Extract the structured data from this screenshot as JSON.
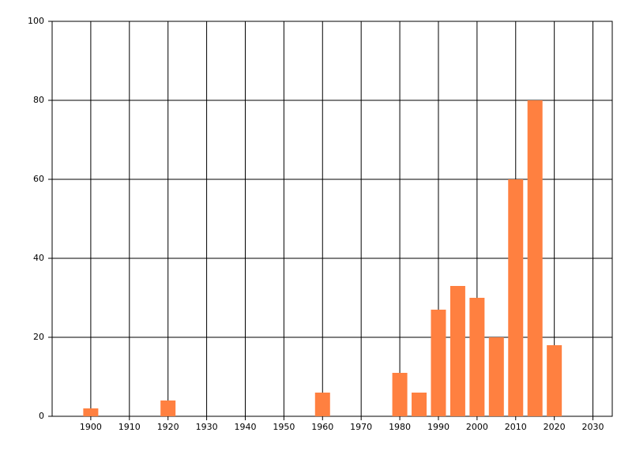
{
  "chart_data": {
    "type": "bar",
    "x": [
      1900,
      1920,
      1960,
      1980,
      1985,
      1990,
      1995,
      2000,
      2005,
      2010,
      2015,
      2020
    ],
    "values": [
      2,
      4,
      6,
      11,
      6,
      27,
      33,
      30,
      20,
      60,
      80,
      18
    ],
    "color": "#ff8040",
    "xlim": [
      1890,
      2035
    ],
    "xticks": [
      1900,
      1910,
      1920,
      1930,
      1940,
      1950,
      1960,
      1970,
      1980,
      1990,
      2000,
      2010,
      2020,
      2030
    ],
    "ylim": [
      0,
      100
    ],
    "yticks": [
      0,
      20,
      40,
      60,
      80,
      100
    ],
    "grid": true
  }
}
